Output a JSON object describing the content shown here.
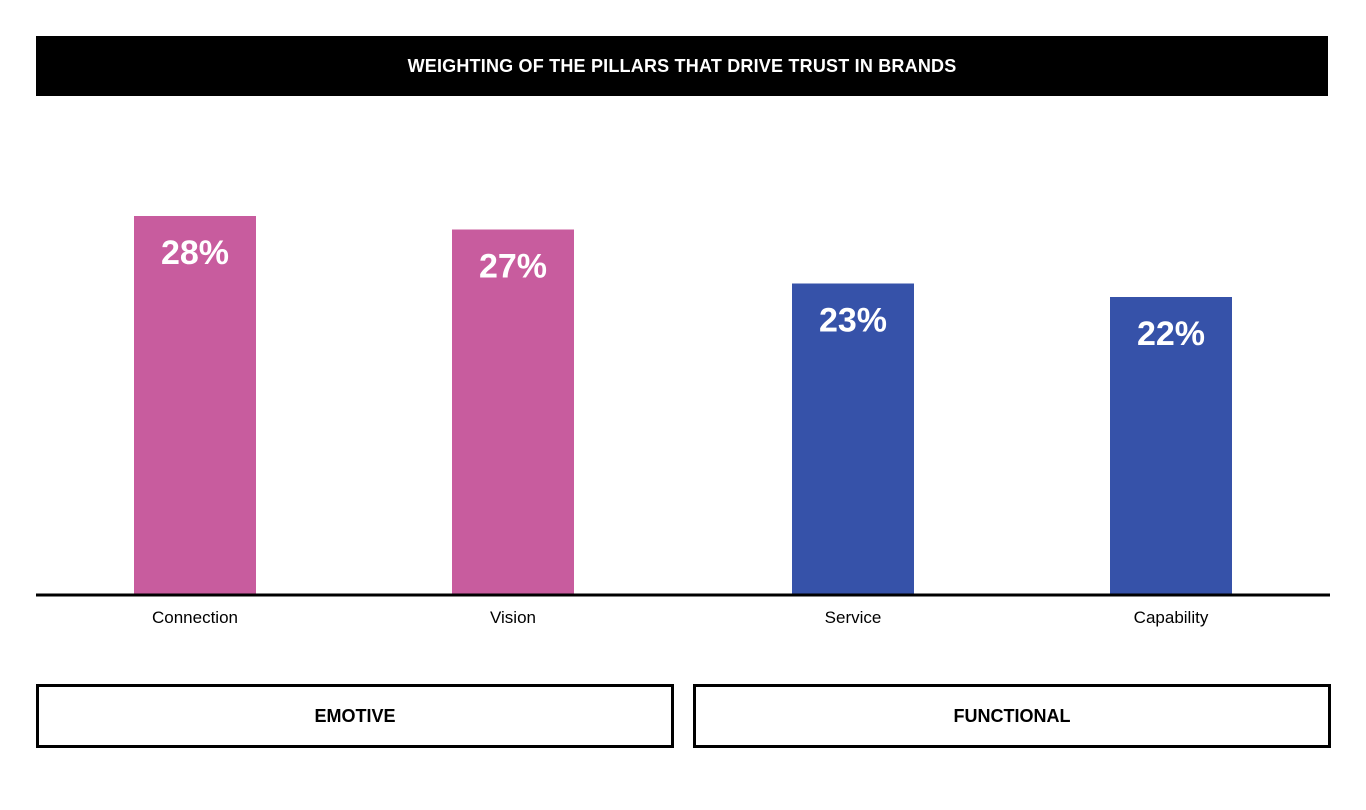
{
  "colors": {
    "emotive": "#C85C9E",
    "functional": "#3652A9",
    "title_bg": "#000000",
    "title_fg": "#FFFFFF",
    "axis": "#000000"
  },
  "chart_data": {
    "type": "bar",
    "title": "WEIGHTING OF THE PILLARS THAT DRIVE TRUST IN BRANDS",
    "categories": [
      "Connection",
      "Vision",
      "Service",
      "Capability"
    ],
    "values": [
      28,
      27,
      23,
      22
    ],
    "value_labels": [
      "28%",
      "27%",
      "23%",
      "22%"
    ],
    "category_groups": [
      "emotive",
      "emotive",
      "functional",
      "functional"
    ],
    "unit": "%",
    "grid": false,
    "legend": "none",
    "groups": [
      {
        "id": "emotive",
        "label": "EMOTIVE"
      },
      {
        "id": "functional",
        "label": "FUNCTIONAL"
      }
    ]
  }
}
